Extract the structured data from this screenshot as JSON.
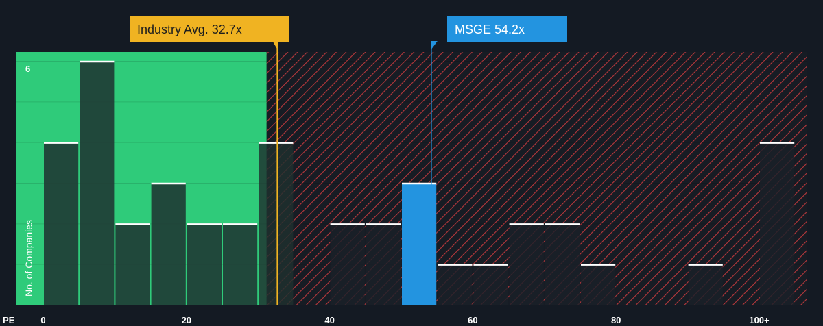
{
  "chart_data": {
    "type": "bar",
    "title": "",
    "xlabel": "PE",
    "ylabel": "No. of Companies",
    "x_ticks": [
      "0",
      "20",
      "40",
      "60",
      "80",
      "100+"
    ],
    "x_tick_values": [
      0,
      20,
      40,
      60,
      80,
      100
    ],
    "y_tick_labels": [
      "6"
    ],
    "y_tick_values": [
      6
    ],
    "ylim": [
      0,
      6.2
    ],
    "xlim": [
      -3.5,
      102
    ],
    "grid": true,
    "bin_width": 5,
    "bins": [
      {
        "x0": 0,
        "x1": 5,
        "count": 4
      },
      {
        "x0": 5,
        "x1": 10,
        "count": 6
      },
      {
        "x0": 10,
        "x1": 15,
        "count": 2
      },
      {
        "x0": 15,
        "x1": 20,
        "count": 3
      },
      {
        "x0": 20,
        "x1": 25,
        "count": 2
      },
      {
        "x0": 25,
        "x1": 30,
        "count": 2
      },
      {
        "x0": 30,
        "x1": 35,
        "count": 4
      },
      {
        "x0": 40,
        "x1": 45,
        "count": 2
      },
      {
        "x0": 45,
        "x1": 50,
        "count": 2
      },
      {
        "x0": 50,
        "x1": 55,
        "count": 3,
        "highlight": true
      },
      {
        "x0": 55,
        "x1": 60,
        "count": 1
      },
      {
        "x0": 60,
        "x1": 65,
        "count": 1
      },
      {
        "x0": 65,
        "x1": 70,
        "count": 2
      },
      {
        "x0": 70,
        "x1": 75,
        "count": 2
      },
      {
        "x0": 75,
        "x1": 80,
        "count": 1
      },
      {
        "x0": 90,
        "x1": 95,
        "count": 1
      },
      {
        "x0": 100,
        "x1": 105,
        "count": 4
      }
    ],
    "fair_range_end": 31.2,
    "annotations": [
      {
        "label": "Industry Avg. 32.7x",
        "value": 32.7,
        "color": "#f0b322"
      },
      {
        "label": "MSGE 54.2x",
        "value": 54.2,
        "color": "#2394e0"
      }
    ],
    "colors": {
      "background": "#141a23",
      "fair_zone": "#2fcb7a",
      "hatch_red": "#b8383c",
      "bar_dark": "#1f3d36",
      "bar_hatched": "#1a2028",
      "highlight": "#2394e0",
      "bar_top": "#ffffff"
    }
  }
}
